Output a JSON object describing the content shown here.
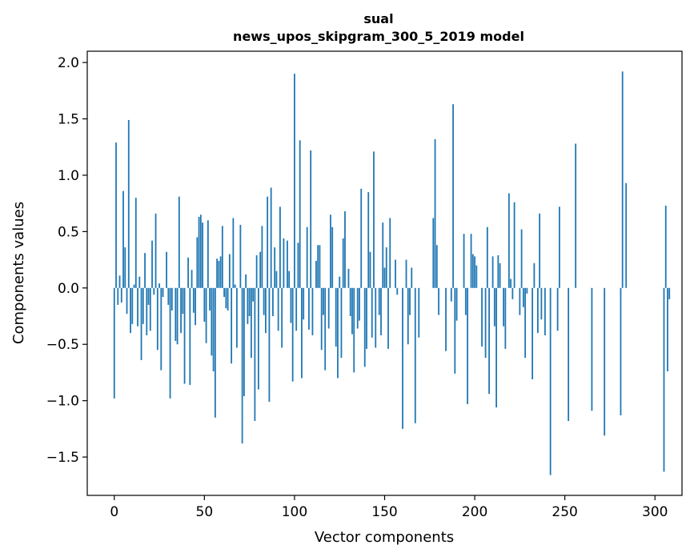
{
  "chart_data": {
    "type": "bar",
    "title_line1": "sual",
    "title_line2": "news_upos_skipgram_300_5_2019 model",
    "xlabel": "Vector components",
    "ylabel": "Components values",
    "xlim": [
      -15,
      315
    ],
    "ylim": [
      -1.84,
      2.1
    ],
    "xticks": [
      0,
      50,
      100,
      150,
      200,
      250,
      300
    ],
    "yticks": [
      -1.5,
      -1.0,
      -0.5,
      0.0,
      0.5,
      1.0,
      1.5,
      2.0
    ],
    "ytick_labels": [
      "−1.5",
      "−1.0",
      "−0.5",
      "0.0",
      "0.5",
      "1.0",
      "1.5",
      "2.0"
    ],
    "bar_color": "#1f77b4",
    "grid": false,
    "values": [
      -0.98,
      1.29,
      -0.15,
      0.11,
      -0.13,
      0.86,
      0.36,
      -0.23,
      1.49,
      -0.4,
      -0.32,
      0.03,
      0.8,
      -0.34,
      0.1,
      -0.64,
      -0.32,
      0.31,
      -0.42,
      -0.15,
      -0.38,
      0.42,
      -0.06,
      0.66,
      -0.55,
      0.04,
      -0.73,
      -0.08,
      0.0,
      0.32,
      -0.15,
      -0.98,
      -0.2,
      0.0,
      -0.47,
      -0.5,
      0.81,
      -0.4,
      -0.23,
      -0.85,
      0.0,
      0.27,
      -0.86,
      0.16,
      -0.22,
      -0.33,
      0.45,
      0.63,
      0.65,
      0.58,
      -0.3,
      -0.49,
      0.6,
      -0.2,
      -0.6,
      -0.74,
      -1.15,
      0.26,
      0.24,
      0.28,
      0.55,
      -0.08,
      -0.18,
      -0.2,
      0.3,
      -0.67,
      0.62,
      0.03,
      -0.53,
      0.0,
      0.56,
      -1.38,
      -0.96,
      0.12,
      -0.32,
      -0.25,
      -0.62,
      -0.12,
      -1.18,
      0.29,
      -0.9,
      0.32,
      0.55,
      -0.24,
      -0.4,
      0.81,
      -1.01,
      0.89,
      -0.25,
      0.36,
      0.15,
      -0.38,
      0.72,
      -0.53,
      0.44,
      0.0,
      0.42,
      0.15,
      -0.31,
      -0.83,
      1.9,
      -0.38,
      0.4,
      1.31,
      -0.8,
      -0.28,
      0.0,
      0.54,
      -0.37,
      1.22,
      -0.42,
      0.0,
      0.24,
      0.38,
      0.38,
      -0.55,
      -0.24,
      -0.73,
      0.0,
      -0.36,
      0.65,
      0.54,
      0.0,
      -0.52,
      -0.8,
      0.1,
      -0.62,
      0.44,
      0.68,
      0.0,
      0.17,
      -0.25,
      -0.41,
      -0.75,
      0.0,
      -0.36,
      -0.29,
      0.88,
      0.0,
      -0.7,
      -0.54,
      0.85,
      0.32,
      -0.44,
      1.21,
      -0.53,
      0.0,
      -0.24,
      -0.42,
      0.58,
      0.18,
      0.36,
      -0.54,
      0.62,
      0.0,
      0.0,
      0.25,
      -0.06,
      0.0,
      0.0,
      -1.25,
      0.0,
      0.25,
      -0.5,
      -0.24,
      0.18,
      0.0,
      -1.2,
      0.0,
      -0.44,
      0.0,
      0.0,
      0.0,
      0.0,
      0.0,
      0.0,
      0.0,
      0.62,
      1.32,
      0.38,
      -0.24,
      0.0,
      0.0,
      0.0,
      -0.56,
      0.0,
      0.0,
      -0.12,
      1.63,
      -0.76,
      -0.29,
      0.0,
      0.0,
      0.0,
      0.48,
      -0.24,
      -1.03,
      0.0,
      0.48,
      0.3,
      0.28,
      0.2,
      0.0,
      0.0,
      -0.52,
      0.0,
      -0.62,
      0.54,
      -0.94,
      0.0,
      0.28,
      -0.34,
      -1.06,
      0.29,
      0.22,
      0.0,
      -0.34,
      -0.54,
      0.0,
      0.84,
      0.08,
      -0.1,
      0.76,
      0.0,
      0.0,
      -0.24,
      0.52,
      -0.17,
      -0.62,
      -0.05,
      0.0,
      0.0,
      -0.81,
      0.22,
      0.0,
      -0.4,
      0.66,
      -0.28,
      0.0,
      -0.42,
      0.0,
      0.0,
      -1.66,
      0.0,
      0.0,
      0.0,
      -0.38,
      0.72,
      0.0,
      0.0,
      0.0,
      0.0,
      -1.18,
      0.0,
      0.0,
      0.0,
      1.28,
      0.0,
      0.0,
      0.0,
      0.0,
      0.0,
      0.0,
      0.0,
      0.0,
      -1.09,
      0.0,
      0.0,
      0.0,
      0.0,
      0.0,
      0.0,
      -1.31,
      0.0,
      0.0,
      0.0,
      0.0,
      0.0,
      0.0,
      0.0,
      0.0,
      -1.13,
      1.92,
      0.0,
      0.93,
      0.0,
      0.0,
      0.0,
      0.0,
      0.0,
      0.0,
      0.0,
      0.0,
      0.0,
      0.0,
      0.0,
      0.0,
      0.0,
      0.0,
      0.0,
      0.0,
      0.0,
      0.0,
      0.0,
      0.0,
      -1.63,
      0.73,
      -0.74,
      -0.1
    ]
  }
}
